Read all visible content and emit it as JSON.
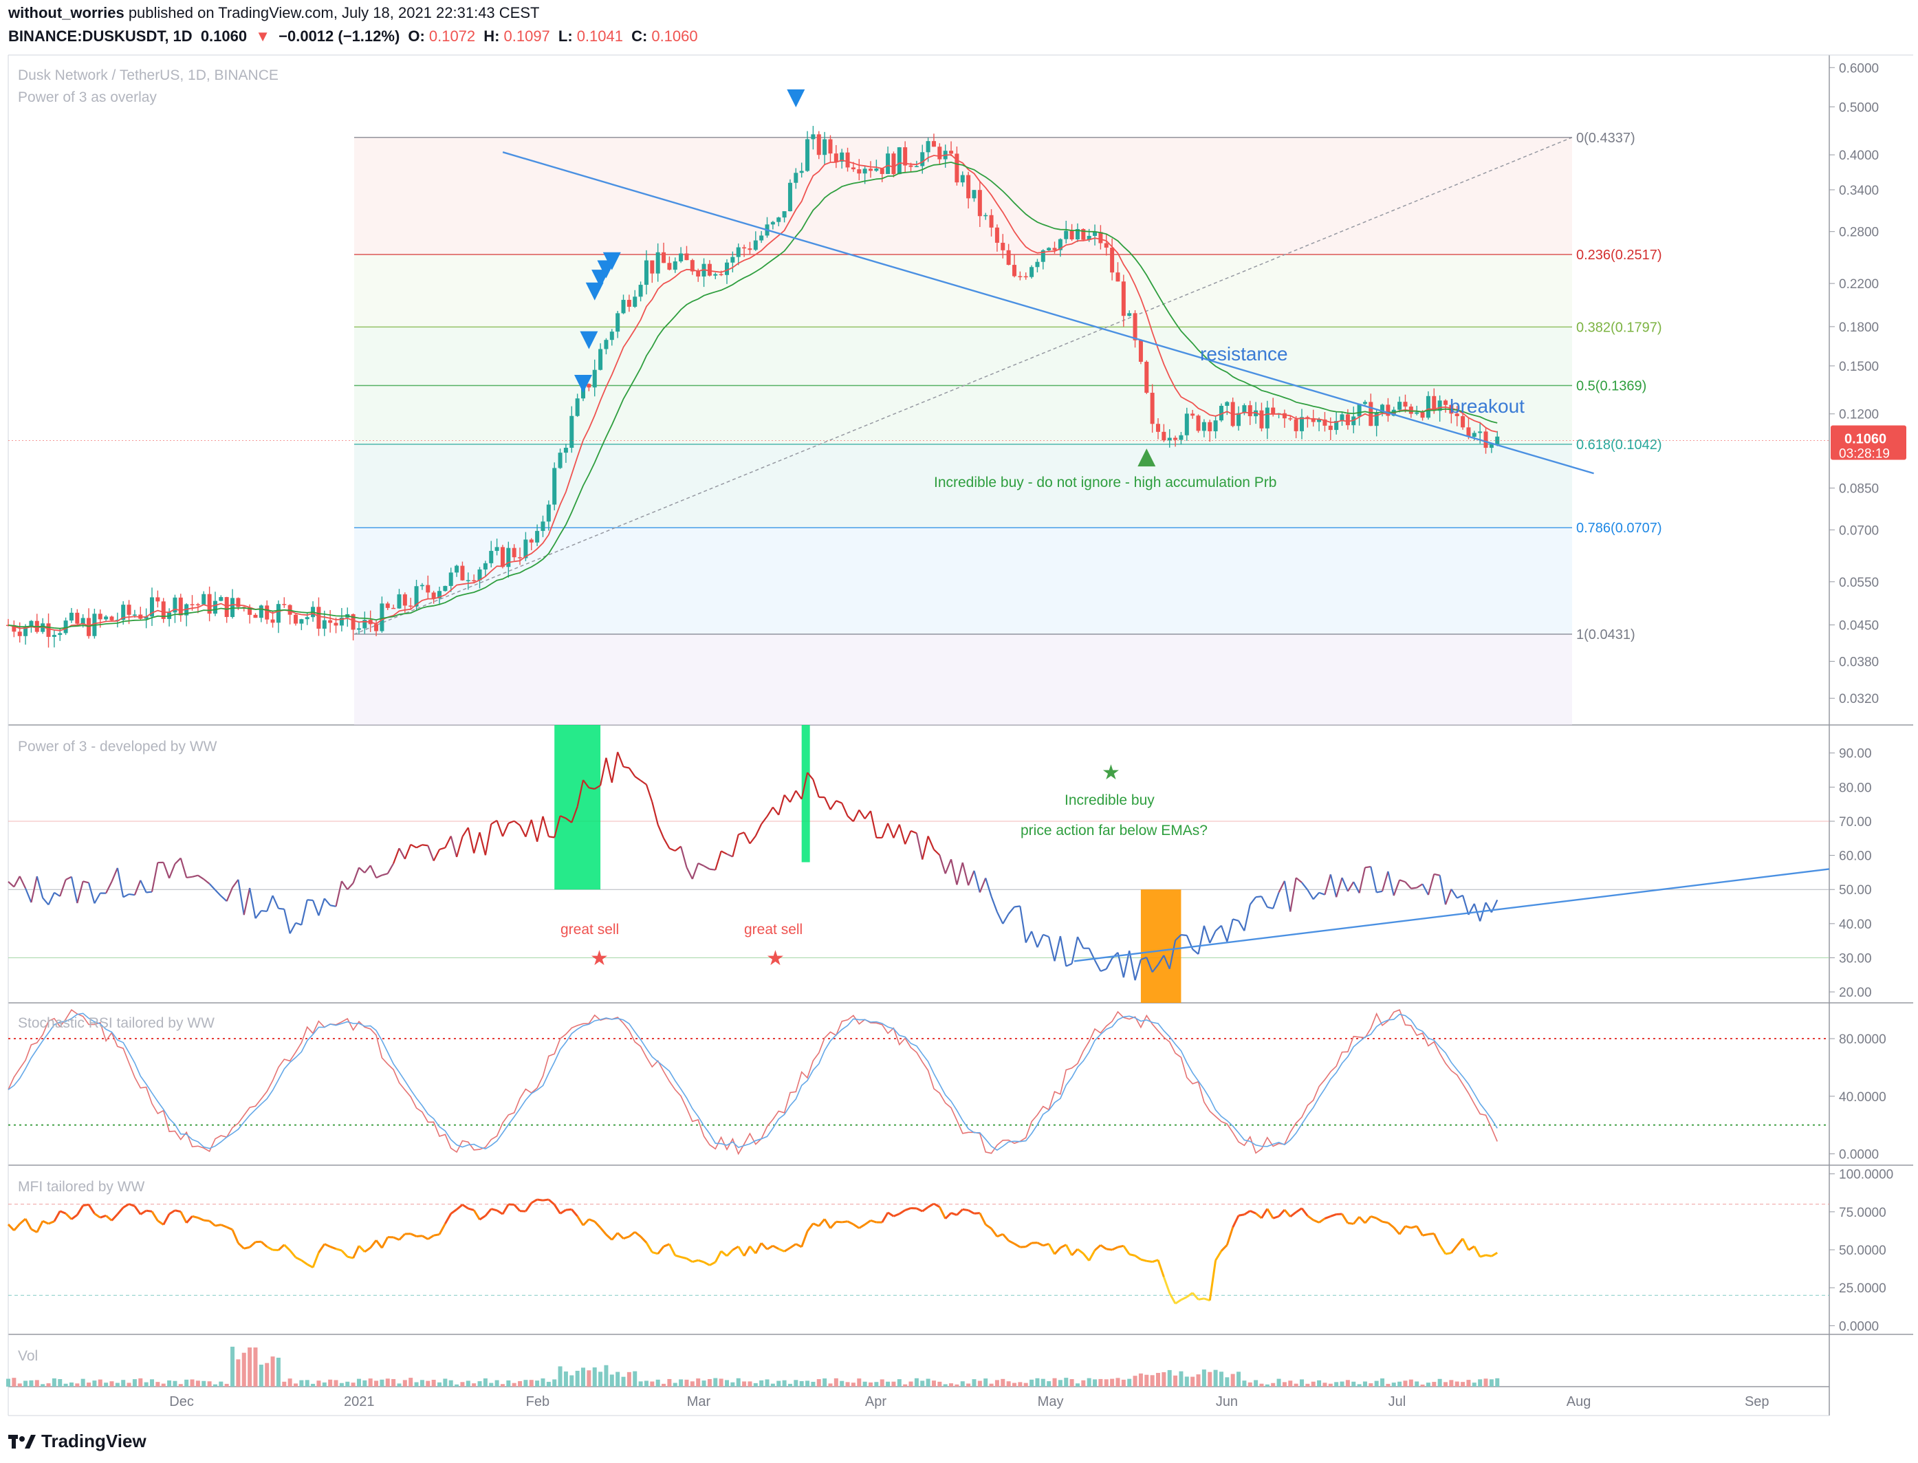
{
  "header": {
    "author": "without_worries",
    "published_text": "published on TradingView.com, July 18, 2021 22:31:43 CEST",
    "symbol": "BINANCE:DUSKUSDT, 1D",
    "last": "0.1060",
    "change_arrow": "▼",
    "change": "−0.0012 (−1.12%)",
    "o_label": "O:",
    "o": "0.1072",
    "h_label": "H:",
    "h": "0.1097",
    "l_label": "L:",
    "l": "0.1041",
    "c_label": "C:",
    "c": "0.1060"
  },
  "footer": {
    "brand": "TradingView"
  },
  "colors": {
    "up": "#26a69a",
    "down": "#ef5350",
    "trend": "#4a90e2",
    "ema_fast": "#ef5350",
    "ema_slow": "#2e9e3e",
    "green_text": "#2e9e3e",
    "red_text": "#ef5350",
    "blue_text": "#3a7bd5"
  },
  "chart_data": [
    {
      "type": "candlestick",
      "title": "Dusk Network / TetherUS, 1D, BINANCE",
      "subtitle": "Power of 3 as overlay",
      "yscale": "log",
      "ylim": [
        0.029,
        0.62
      ],
      "x_tick_labels": [
        "Dec",
        "2021",
        "Feb",
        "Mar",
        "Apr",
        "May",
        "Jun",
        "Jul",
        "Aug",
        "Sep"
      ],
      "y_tick_labels": [
        "0.6000",
        "0.5000",
        "0.4000",
        "0.3400",
        "0.2800",
        "0.2200",
        "0.1800",
        "0.1500",
        "0.1200",
        "0.0850",
        "0.0700",
        "0.0550",
        "0.0450",
        "0.0380",
        "0.0320"
      ],
      "y_tick_values": [
        0.6,
        0.5,
        0.4,
        0.34,
        0.28,
        0.22,
        0.18,
        0.15,
        0.12,
        0.085,
        0.07,
        0.055,
        0.045,
        0.038,
        0.032
      ],
      "key_closes": [
        {
          "date": "2020-11-15",
          "close": 0.045
        },
        {
          "date": "2020-12-01",
          "close": 0.05
        },
        {
          "date": "2020-12-20",
          "close": 0.048
        },
        {
          "date": "2021-01-01",
          "close": 0.044
        },
        {
          "date": "2021-01-20",
          "close": 0.058
        },
        {
          "date": "2021-02-01",
          "close": 0.066
        },
        {
          "date": "2021-02-10",
          "close": 0.14
        },
        {
          "date": "2021-02-20",
          "close": 0.24
        },
        {
          "date": "2021-03-05",
          "close": 0.24
        },
        {
          "date": "2021-03-15",
          "close": 0.29
        },
        {
          "date": "2021-03-20",
          "close": 0.42
        },
        {
          "date": "2021-04-01",
          "close": 0.38
        },
        {
          "date": "2021-04-12",
          "close": 0.41
        },
        {
          "date": "2021-04-25",
          "close": 0.22
        },
        {
          "date": "2021-05-01",
          "close": 0.27
        },
        {
          "date": "2021-05-10",
          "close": 0.27
        },
        {
          "date": "2021-05-19",
          "close": 0.11
        },
        {
          "date": "2021-06-01",
          "close": 0.12
        },
        {
          "date": "2021-06-15",
          "close": 0.115
        },
        {
          "date": "2021-06-25",
          "close": 0.12
        },
        {
          "date": "2021-07-05",
          "close": 0.125
        },
        {
          "date": "2021-07-18",
          "close": 0.106
        }
      ],
      "fib_levels": [
        {
          "label": "0(0.4337)",
          "value": 0.4337,
          "color": "#787b86"
        },
        {
          "label": "0.236(0.2517)",
          "value": 0.2517,
          "color": "#d32f2f"
        },
        {
          "label": "0.382(0.1797)",
          "value": 0.1797,
          "color": "#7cb342"
        },
        {
          "label": "0.5(0.1369)",
          "value": 0.1369,
          "color": "#2e9e3e"
        },
        {
          "label": "0.618(0.1042)",
          "value": 0.1042,
          "color": "#26a69a"
        },
        {
          "label": "0.786(0.0707)",
          "value": 0.0707,
          "color": "#1e88e5"
        },
        {
          "label": "1(0.0431)",
          "value": 0.0431,
          "color": "#787b86"
        }
      ],
      "price_tag": {
        "price": "0.1060",
        "countdown": "03:28:19"
      },
      "annotations": [
        {
          "text": "resistance",
          "color": "#3a7bd5"
        },
        {
          "text": "breakout",
          "color": "#3a7bd5"
        },
        {
          "text": "Incredible buy - do not ignore - high accumulation Prb",
          "color": "#2e9e3e"
        }
      ]
    },
    {
      "type": "line",
      "title": "Power of 3 - developed by WW",
      "ylim": [
        18,
        97
      ],
      "y_tick_labels": [
        "90.00",
        "80.00",
        "70.00",
        "60.00",
        "50.00",
        "40.00",
        "30.00",
        "20.00"
      ],
      "y_tick_values": [
        90,
        80,
        70,
        60,
        50,
        40,
        30,
        20
      ],
      "key_values": [
        {
          "date": "2020-11-15",
          "value": 50
        },
        {
          "date": "2020-12-01",
          "value": 55
        },
        {
          "date": "2020-12-20",
          "value": 42
        },
        {
          "date": "2021-01-10",
          "value": 60
        },
        {
          "date": "2021-02-05",
          "value": 70
        },
        {
          "date": "2021-02-15",
          "value": 88
        },
        {
          "date": "2021-03-01",
          "value": 55
        },
        {
          "date": "2021-03-20",
          "value": 82
        },
        {
          "date": "2021-04-15",
          "value": 56
        },
        {
          "date": "2021-05-01",
          "value": 33
        },
        {
          "date": "2021-05-19",
          "value": 27
        },
        {
          "date": "2021-06-10",
          "value": 48
        },
        {
          "date": "2021-07-05",
          "value": 54
        },
        {
          "date": "2021-07-18",
          "value": 42
        }
      ],
      "annotations": [
        {
          "text": "great sell",
          "color": "#ef5350"
        },
        {
          "text": "great sell",
          "color": "#ef5350"
        },
        {
          "text": "Incredible buy",
          "color": "#2e9e3e"
        },
        {
          "text": "price action far below EMAs?",
          "color": "#2e9e3e"
        }
      ]
    },
    {
      "type": "line",
      "title": "Stochastic RSI tailored by WW",
      "ylim": [
        -5,
        102
      ],
      "y_tick_labels": [
        "80.0000",
        "40.0000",
        "0.0000"
      ],
      "y_tick_values": [
        80,
        40,
        0
      ],
      "levels": [
        80,
        20
      ]
    },
    {
      "type": "line",
      "title": "MFI tailored by WW",
      "ylim": [
        -3,
        103
      ],
      "y_tick_labels": [
        "100.0000",
        "75.0000",
        "50.0000",
        "25.0000",
        "0.0000"
      ],
      "y_tick_values": [
        100,
        75,
        50,
        25,
        0
      ],
      "levels": [
        80,
        20
      ]
    },
    {
      "type": "bar",
      "title": "Vol"
    }
  ]
}
